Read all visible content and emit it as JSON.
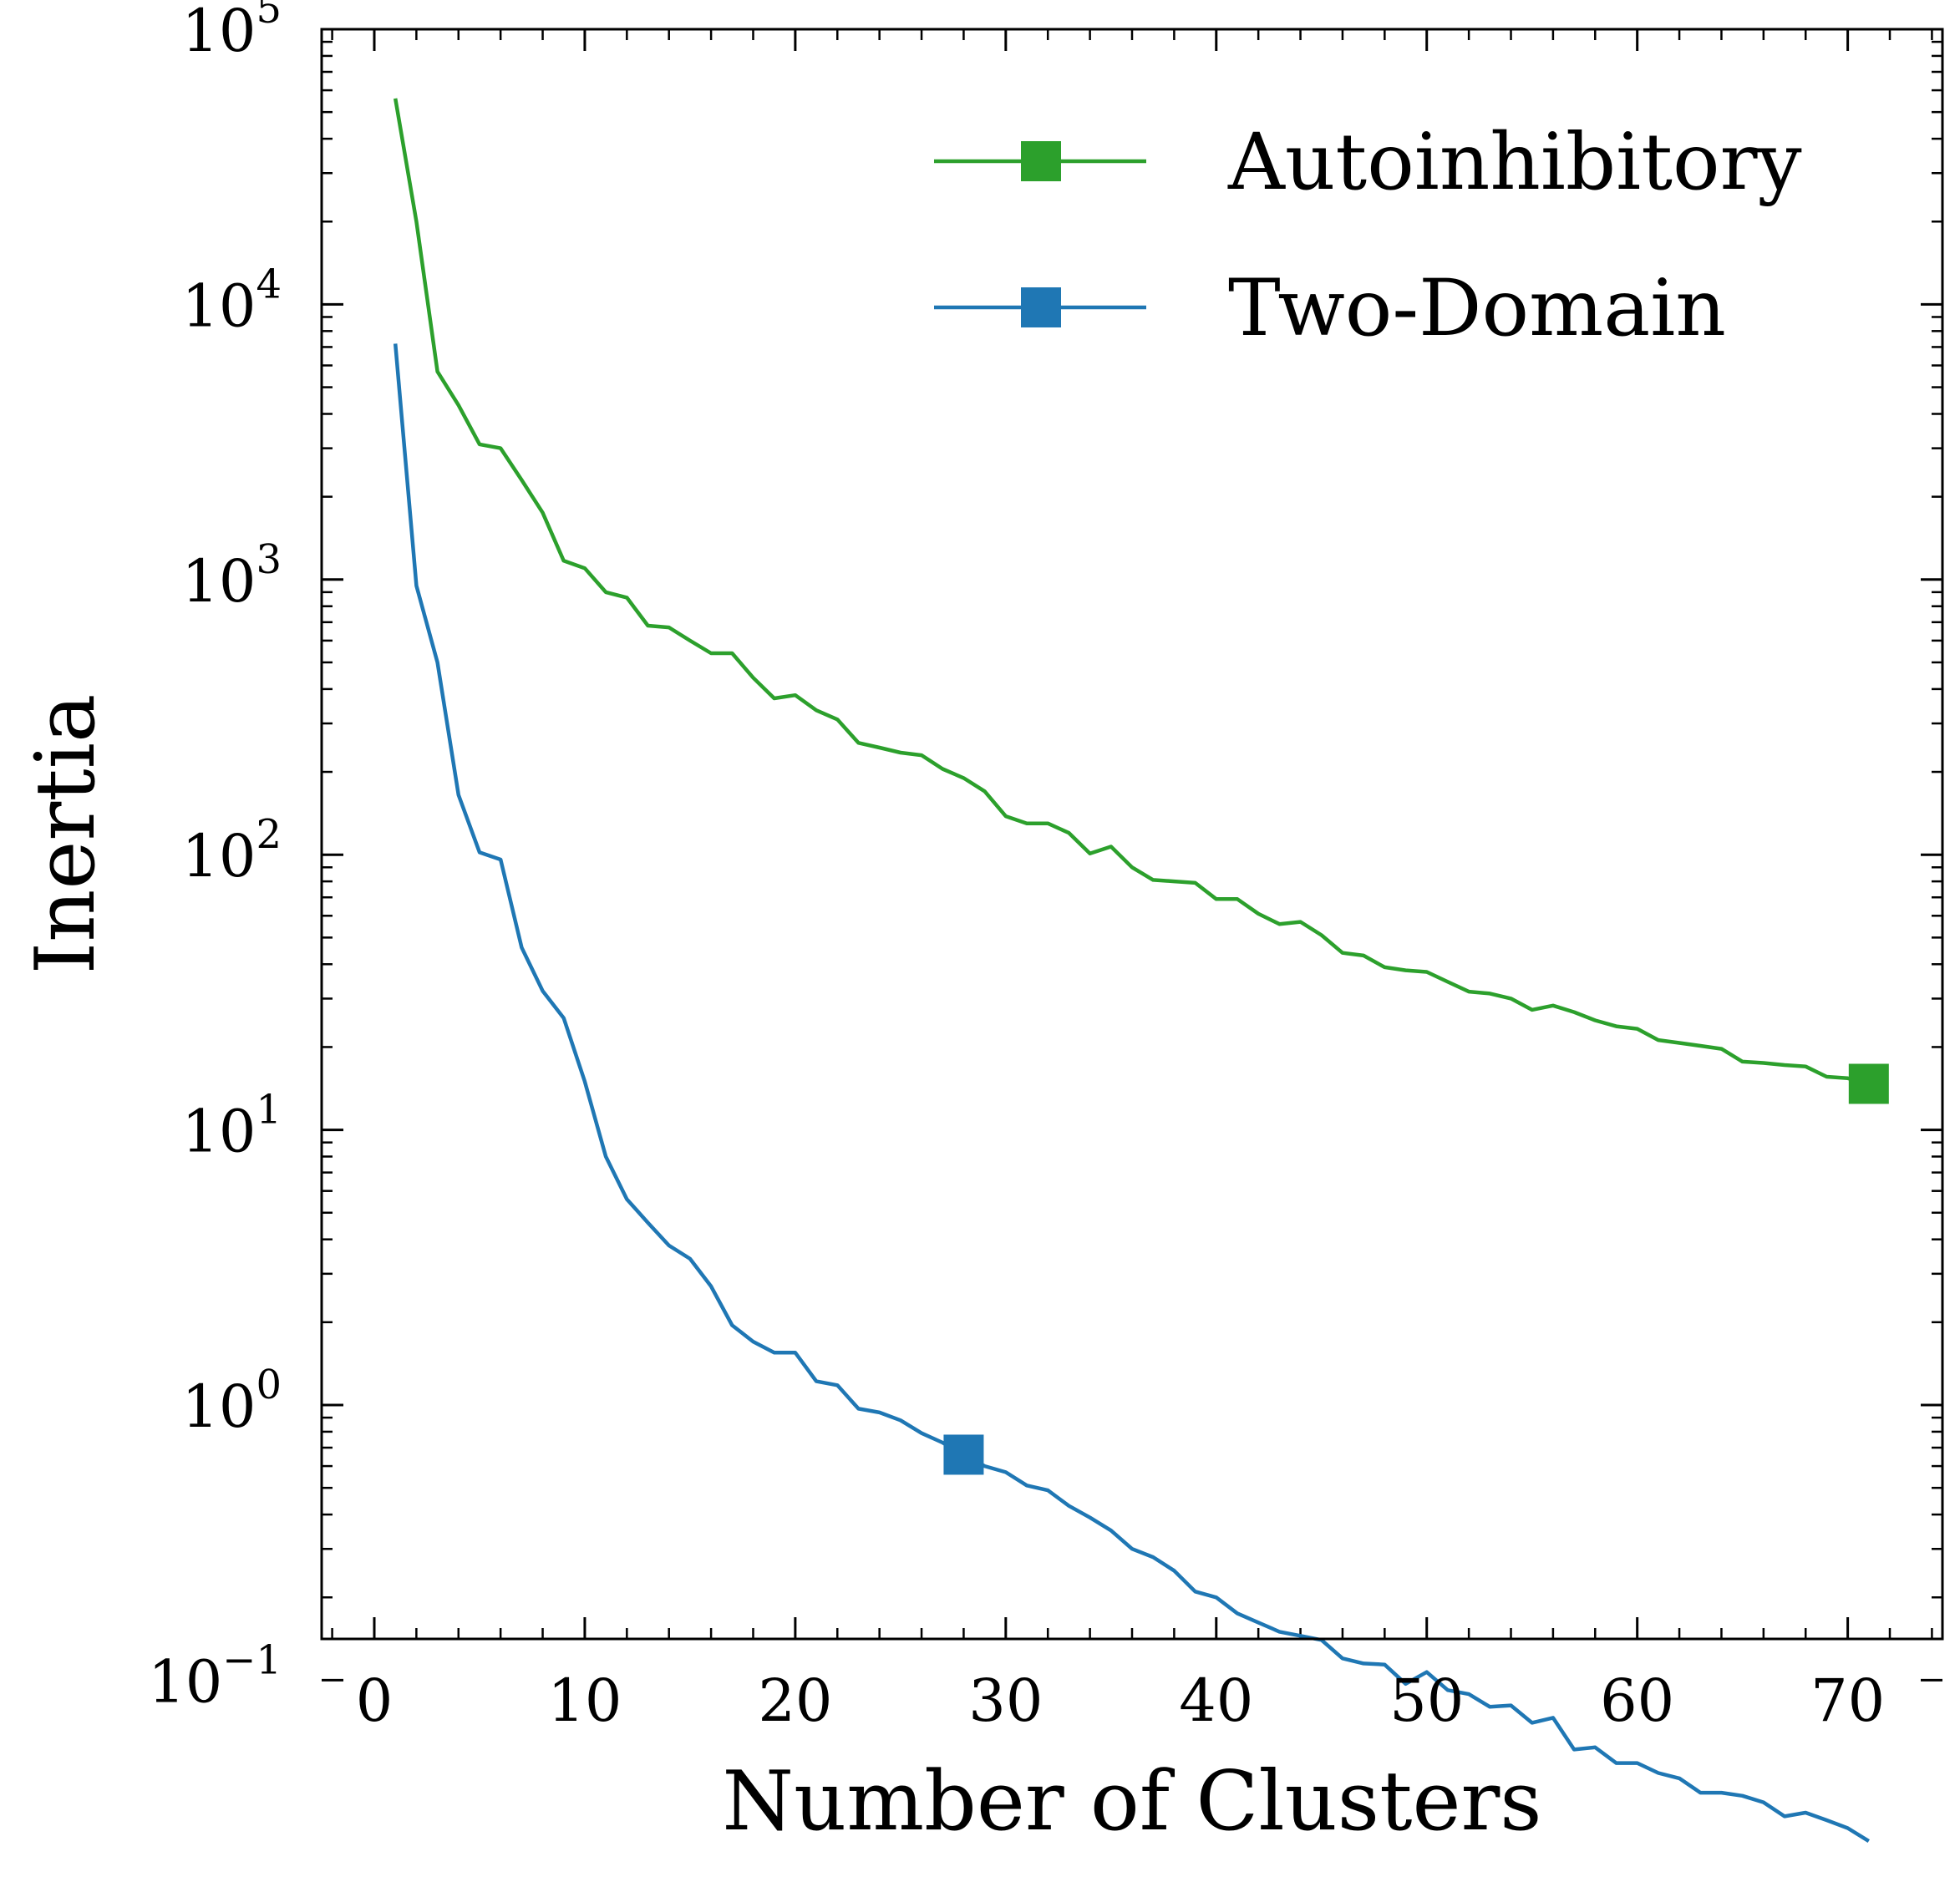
{
  "chart_data": {
    "type": "line",
    "title": "",
    "xlabel": "Number of Clusters",
    "ylabel": "Inertia",
    "xlim": [
      -2.5,
      74.5
    ],
    "ylim": [
      -0.85,
      5.0
    ],
    "yscale": "log",
    "xticks": [
      0,
      10,
      20,
      30,
      40,
      50,
      60,
      70
    ],
    "xtick_labels": [
      "0",
      "10",
      "20",
      "30",
      "40",
      "50",
      "60",
      "70"
    ],
    "yticks": [
      {
        "base": "10",
        "exp": "−1",
        "value": 0.1
      },
      {
        "base": "10",
        "exp": "0",
        "value": 1
      },
      {
        "base": "10",
        "exp": "1",
        "value": 10
      },
      {
        "base": "10",
        "exp": "2",
        "value": 100
      },
      {
        "base": "10",
        "exp": "3",
        "value": 1000
      },
      {
        "base": "10",
        "exp": "4",
        "value": 10000
      },
      {
        "base": "10",
        "exp": "5",
        "value": 100000
      }
    ],
    "grid": false,
    "legend_position": "top-right",
    "series": [
      {
        "name": "Autoinhibitory",
        "color": "#2ca02c",
        "marker_index": 70,
        "x": [
          1,
          2,
          3,
          4,
          5,
          6,
          7,
          8,
          9,
          10,
          11,
          12,
          13,
          14,
          15,
          16,
          17,
          18,
          19,
          20,
          21,
          22,
          23,
          24,
          25,
          26,
          27,
          28,
          29,
          30,
          31,
          32,
          33,
          34,
          35,
          36,
          37,
          38,
          39,
          40,
          41,
          42,
          43,
          44,
          45,
          46,
          47,
          48,
          49,
          50,
          51,
          52,
          53,
          54,
          55,
          56,
          57,
          58,
          59,
          60,
          61,
          62,
          63,
          64,
          65,
          66,
          67,
          68,
          69,
          70,
          71
        ],
        "y": [
          56000,
          20000,
          5700,
          4300,
          3100,
          3000,
          2300,
          1750,
          1170,
          1100,
          900,
          860,
          680,
          670,
          600,
          540,
          540,
          440,
          370,
          380,
          335,
          310,
          255,
          245,
          235,
          230,
          205,
          190,
          170,
          138,
          130,
          130,
          120,
          101,
          107,
          90,
          81,
          80,
          79,
          69,
          69,
          61,
          56,
          57,
          51,
          44,
          43,
          39,
          38,
          37.5,
          34.5,
          31.8,
          31.3,
          30,
          27.3,
          28.3,
          26.8,
          25,
          23.8,
          23.3,
          21.2,
          20.7,
          20.2,
          19.7,
          17.7,
          17.5,
          17.2,
          17,
          15.6,
          15.4,
          14.7
        ]
      },
      {
        "name": "Two-Domain",
        "color": "#1f77b4",
        "marker_index": 27,
        "x": [
          1,
          2,
          3,
          4,
          5,
          6,
          7,
          8,
          9,
          10,
          11,
          12,
          13,
          14,
          15,
          16,
          17,
          18,
          19,
          20,
          21,
          22,
          23,
          24,
          25,
          26,
          27,
          28,
          29,
          30,
          31,
          32,
          33,
          34,
          35,
          36,
          37,
          38,
          39,
          40,
          41,
          42,
          43,
          44,
          45,
          46,
          47,
          48,
          49,
          50,
          51,
          52,
          53,
          54,
          55,
          56,
          57,
          58,
          59,
          60,
          61,
          62,
          63,
          64,
          65,
          66,
          67,
          68,
          69,
          70,
          71
        ],
        "y": [
          7200,
          950,
          500,
          165,
          102,
          96,
          46,
          32,
          25.5,
          15,
          8,
          5.6,
          4.6,
          3.8,
          3.4,
          2.7,
          1.95,
          1.7,
          1.55,
          1.55,
          1.22,
          1.18,
          0.97,
          0.94,
          0.88,
          0.79,
          0.73,
          0.66,
          0.6,
          0.57,
          0.51,
          0.49,
          0.43,
          0.39,
          0.35,
          0.3,
          0.28,
          0.25,
          0.21,
          0.2,
          0.175,
          0.162,
          0.15,
          0.145,
          0.14,
          0.12,
          0.115,
          0.114,
          0.097,
          0.107,
          0.092,
          0.089,
          0.08,
          0.081,
          0.07,
          0.073,
          0.056,
          0.057,
          0.05,
          0.05,
          0.046,
          0.044,
          0.039,
          0.039,
          0.038,
          0.036,
          0.032,
          0.033,
          0.031,
          0.029,
          0.026
        ]
      }
    ]
  }
}
